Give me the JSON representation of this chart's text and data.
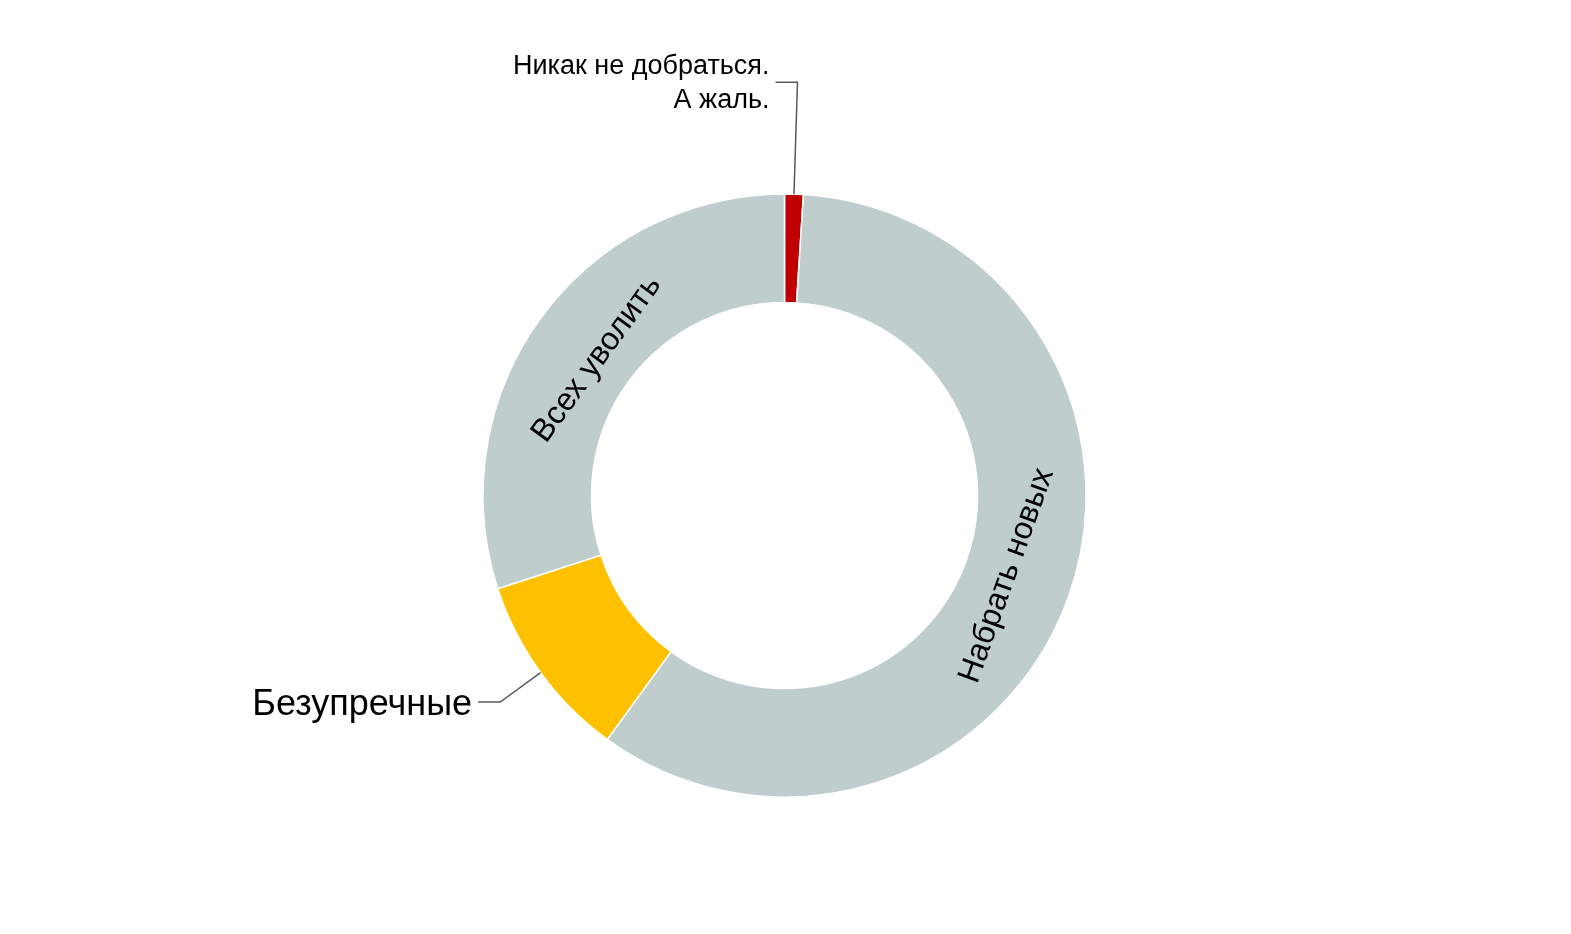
{
  "chart_data": {
    "type": "donut",
    "categories": [
      "Никак не добраться.\nА жаль.",
      "Набрать новых",
      "Безупречные",
      "Всех уволить"
    ],
    "values": [
      1,
      59,
      10,
      30
    ],
    "colors": [
      "#c00000",
      "#bfcecd",
      "#ffc000",
      "#bfcecd"
    ]
  }
}
